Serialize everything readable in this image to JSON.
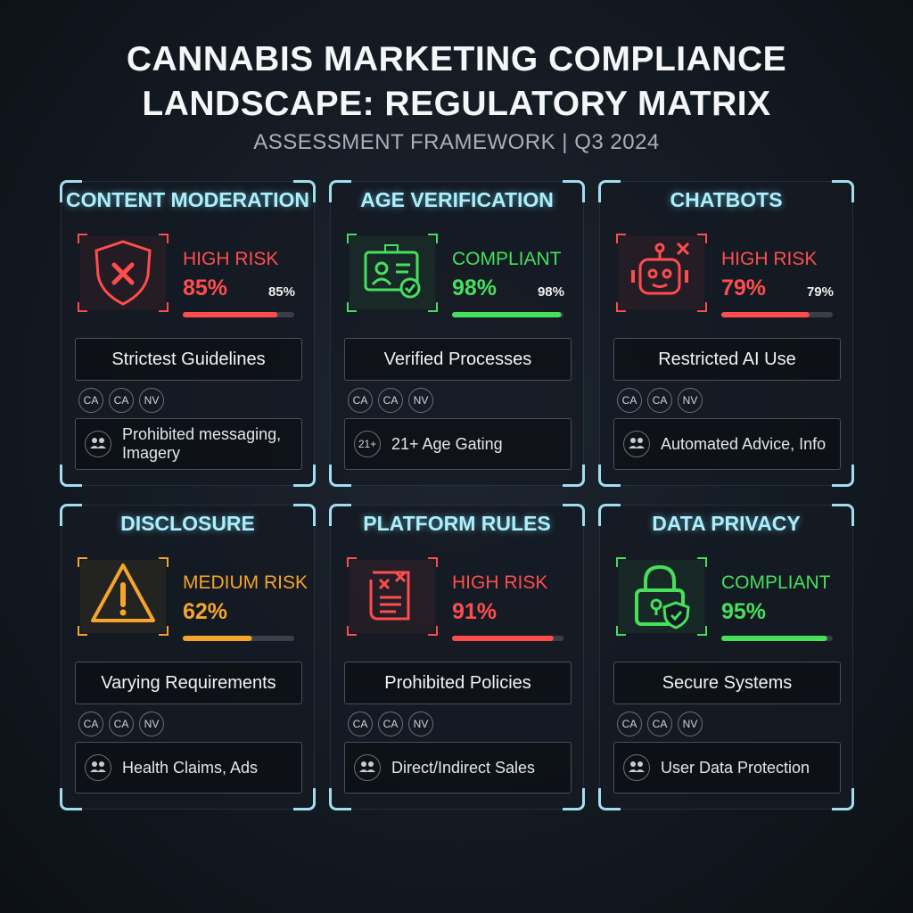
{
  "header": {
    "title": "CANNABIS MARKETING COMPLIANCE LANDSCAPE: REGULATORY MATRIX",
    "subtitle": "ASSESSMENT FRAMEWORK | Q3 2024"
  },
  "cards": [
    {
      "title": "CONTENT MODERATION",
      "status": "HIGH RISK",
      "value": 85,
      "value_label": "85%",
      "side_label": "85%",
      "color": "#ff4d4d",
      "description": "Strictest Guidelines",
      "states": [
        "CA",
        "CA",
        "NV"
      ],
      "detail": "Prohibited messaging, Imagery"
    },
    {
      "title": "AGE VERIFICATION",
      "status": "COMPLIANT",
      "value": 98,
      "value_label": "98%",
      "side_label": "98%",
      "color": "#45e05c",
      "description": "Verified Processes",
      "states": [
        "CA",
        "CA",
        "NV"
      ],
      "detail_badge": "21+",
      "detail": "21+ Age Gating"
    },
    {
      "title": "CHATBOTS",
      "status": "HIGH RISK",
      "value": 79,
      "value_label": "79%",
      "side_label": "79%",
      "color": "#ff4d4d",
      "description": "Restricted AI Use",
      "states": [
        "CA",
        "CA",
        "NV"
      ],
      "detail": "Automated Advice, Info"
    },
    {
      "title": "DISCLOSURE",
      "status": "MEDIUM RISK",
      "value": 62,
      "value_label": "62%",
      "color": "#f5a52a",
      "description": "Varying Requirements",
      "states": [
        "CA",
        "CA",
        "NV"
      ],
      "detail": "Health Claims, Ads"
    },
    {
      "title": "PLATFORM RULES",
      "status": "HIGH RISK",
      "value": 91,
      "value_label": "91%",
      "color": "#ff4d4d",
      "description": "Prohibited Policies",
      "states": [
        "CA",
        "CA",
        "NV"
      ],
      "detail": "Direct/Indirect Sales"
    },
    {
      "title": "DATA PRIVACY",
      "status": "COMPLIANT",
      "value": 95,
      "value_label": "95%",
      "color": "#45e05c",
      "description": "Secure Systems",
      "states": [
        "CA",
        "CA",
        "NV"
      ],
      "detail": "User Data Protection"
    }
  ]
}
